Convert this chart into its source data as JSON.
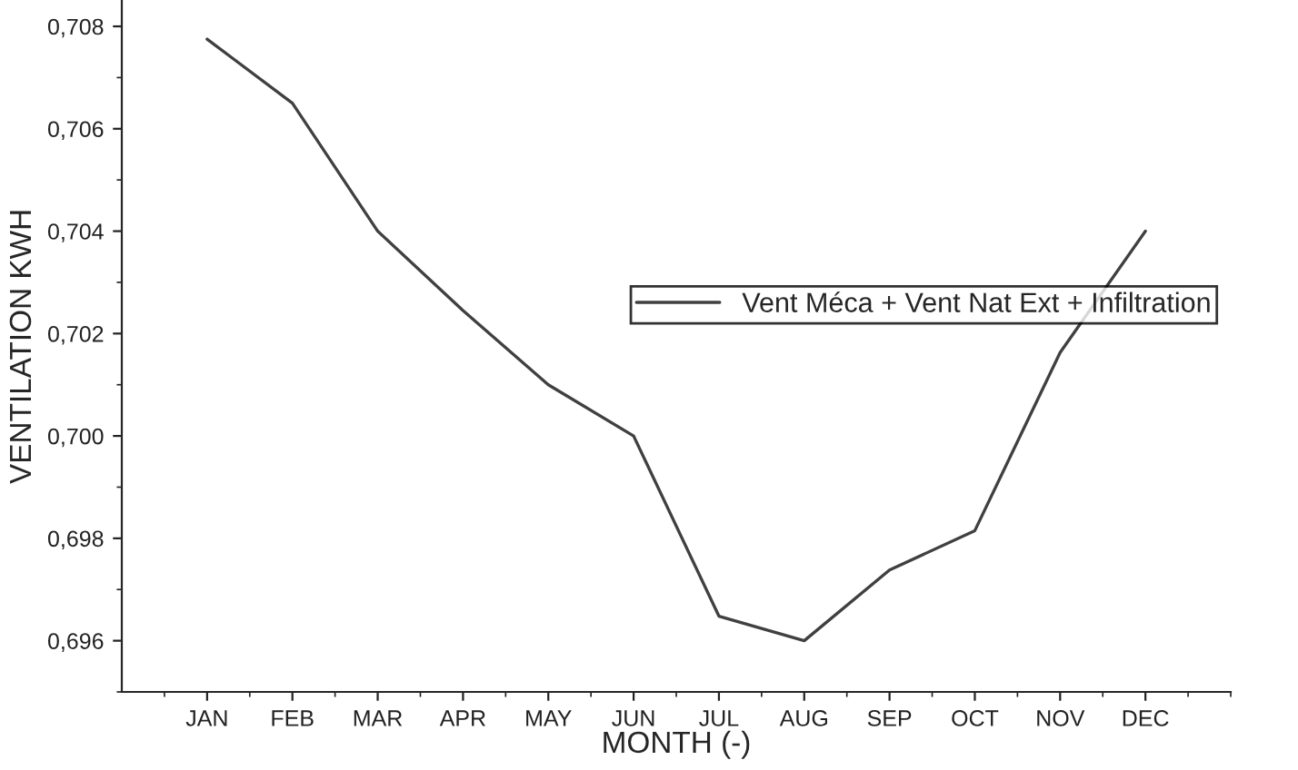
{
  "chart_data": {
    "type": "line",
    "xlabel": "MONTH (-)",
    "ylabel": "VENTILATION KWH",
    "categories": [
      "JAN",
      "FEB",
      "MAR",
      "APR",
      "MAY",
      "JUN",
      "JUL",
      "AUG",
      "SEP",
      "OCT",
      "NOV",
      "DEC"
    ],
    "series": [
      {
        "name": "Vent Méca + Vent Nat Ext + Infiltration",
        "color": "#404040",
        "values": [
          0.70775,
          0.7065,
          0.704,
          0.70245,
          0.701,
          0.7,
          0.69648,
          0.696,
          0.69738,
          0.69815,
          0.70163,
          0.704
        ]
      }
    ],
    "ylim": [
      0.695,
      0.7085
    ],
    "yticks": [
      {
        "value": 0.696,
        "label": "0,696"
      },
      {
        "value": 0.698,
        "label": "0,698"
      },
      {
        "value": 0.7,
        "label": "0,700"
      },
      {
        "value": 0.702,
        "label": "0,702"
      },
      {
        "value": 0.704,
        "label": "0,704"
      },
      {
        "value": 0.706,
        "label": "0,706"
      },
      {
        "value": 0.708,
        "label": "0,708"
      }
    ],
    "legend": "right",
    "grid": false,
    "marker": "none",
    "line_style": "solid"
  }
}
